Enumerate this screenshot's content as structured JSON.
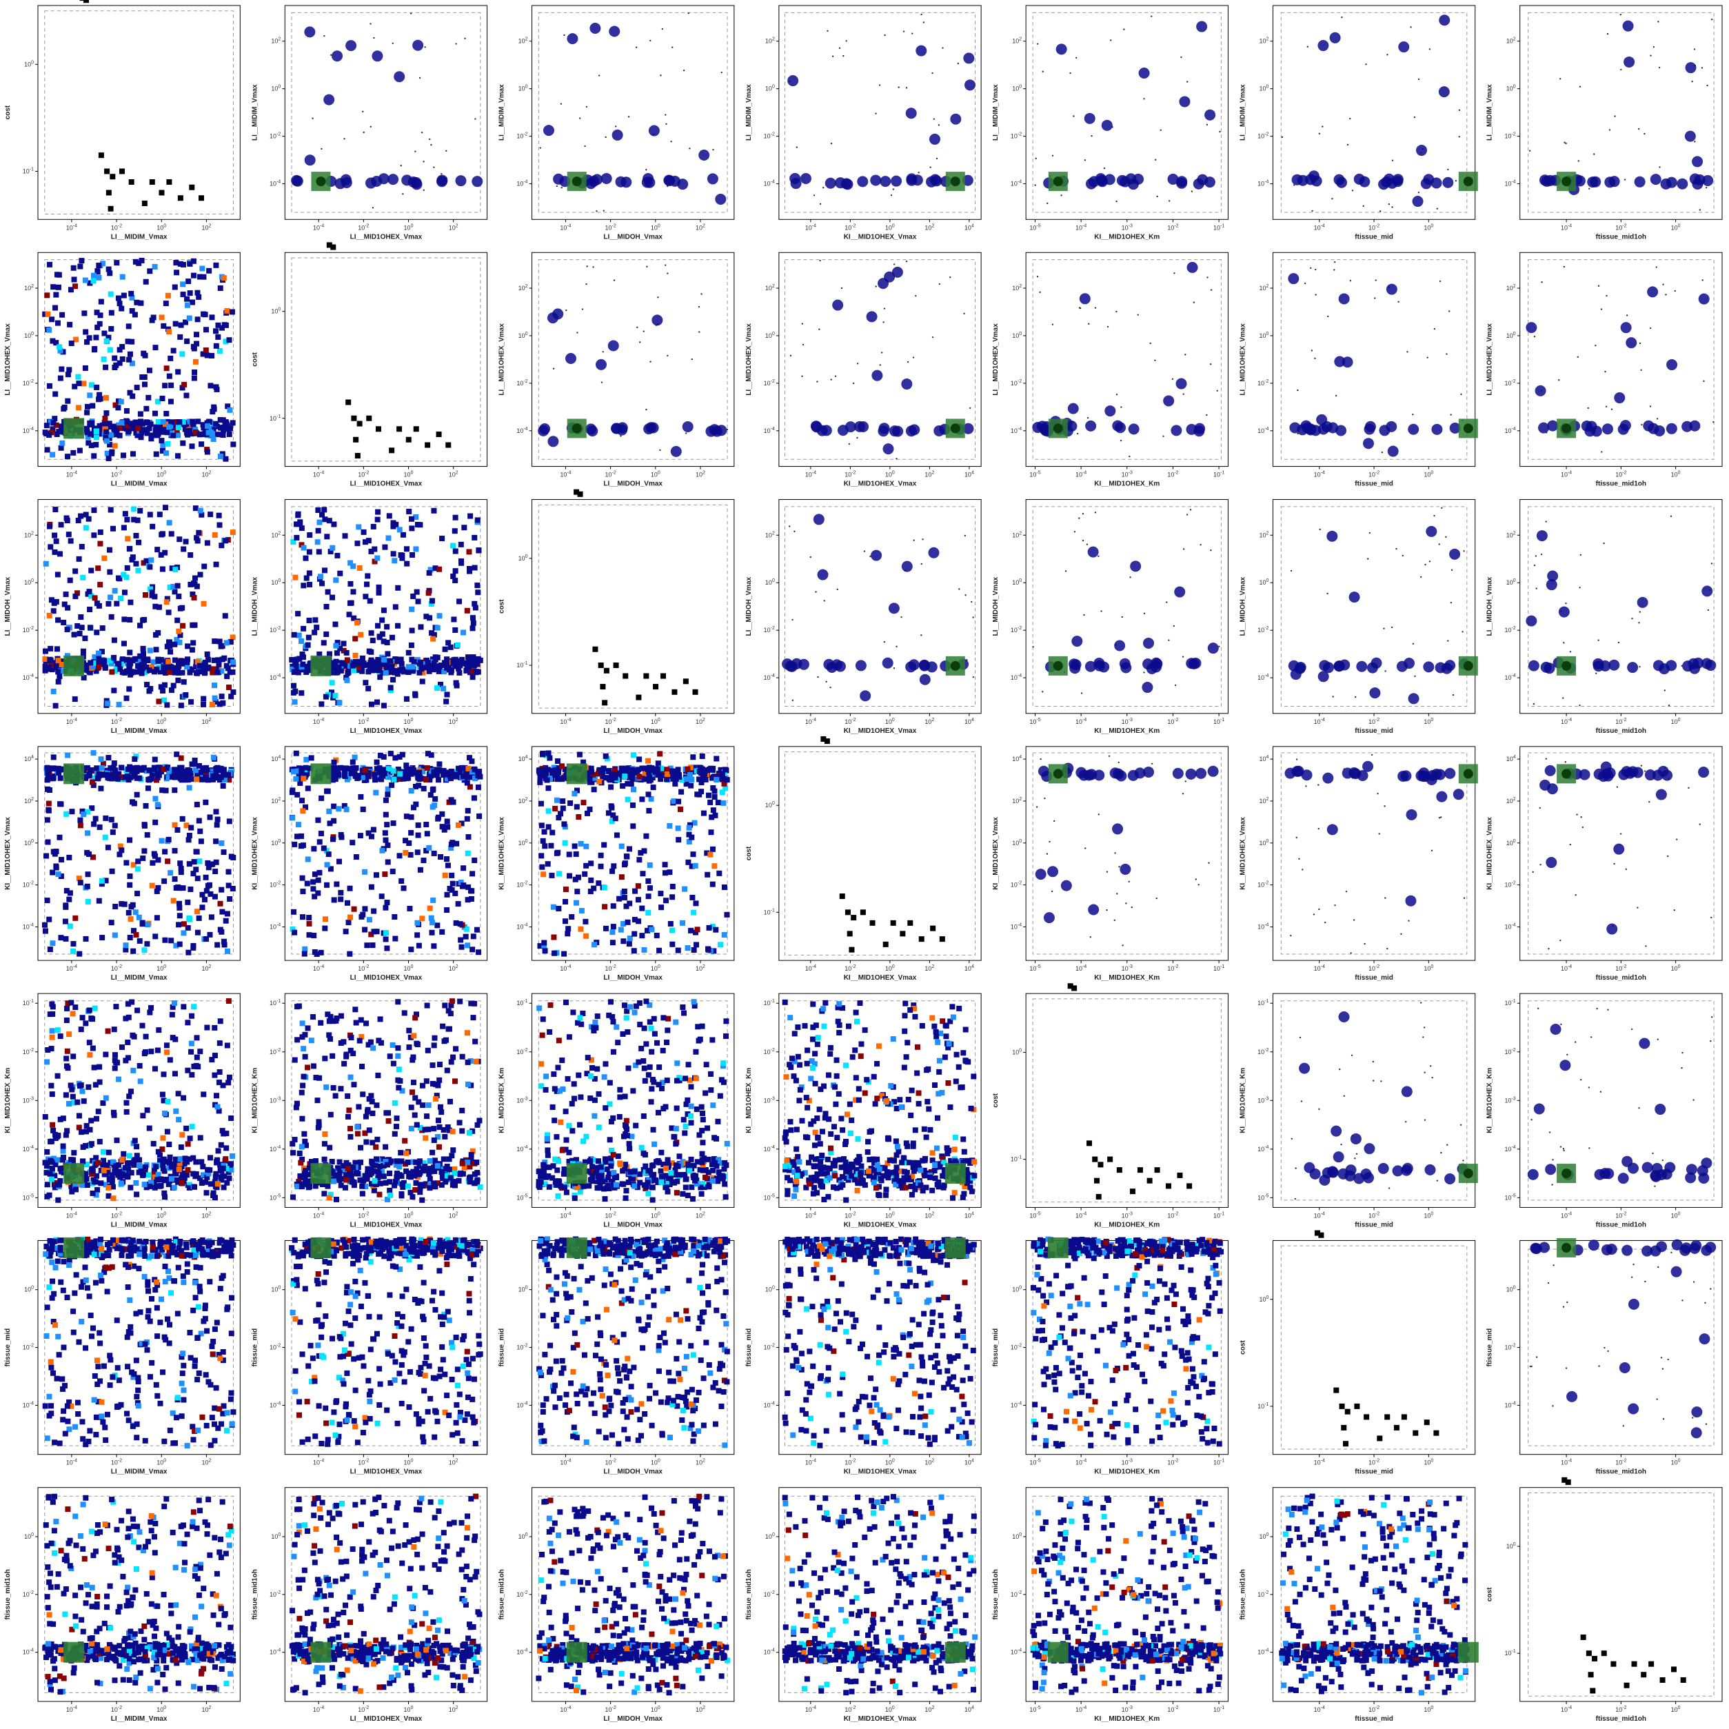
{
  "figure": {
    "type": "scatter-matrix",
    "variables": [
      "LI__MIDIM_Vmax",
      "LI__MID1OHEX_Vmax",
      "LI__MIDOH_Vmax",
      "KI__MID1OHEX_Vmax",
      "KI__MID1OHEX_Km",
      "ftissue_mid",
      "ftissue_mid1oh"
    ],
    "diagonal_ylabel": "cost",
    "colors": {
      "best_fit": "#2e7d32",
      "low_cost": "#0a0a8c",
      "mid_cost": "#1e90ff",
      "high_cost": "#8b0000",
      "frame": "#000000",
      "bounds": "#999999"
    },
    "legend": "none",
    "grid": false,
    "scale": "log-log"
  },
  "chart_data": {
    "type": "scatter",
    "title": "",
    "axes": {
      "LI__MIDIM_Vmax": {
        "xlabel": "LI__MIDIM_Vmax",
        "ticks": [
          "10^-4",
          "10^-2",
          "10^0",
          "10^2"
        ],
        "exp": [
          -4,
          -2,
          0,
          2
        ],
        "lim": [
          -5.5,
          3.5
        ],
        "bounds": [
          -5.2,
          3.2
        ]
      },
      "LI__MID1OHEX_Vmax": {
        "xlabel": "LI__MID1OHEX_Vmax",
        "ticks": [
          "10^-4",
          "10^-2",
          "10^0",
          "10^2"
        ],
        "exp": [
          -4,
          -2,
          0,
          2
        ],
        "lim": [
          -5.5,
          3.5
        ],
        "bounds": [
          -5.2,
          3.2
        ]
      },
      "LI__MIDOH_Vmax": {
        "xlabel": "LI__MIDOH_Vmax",
        "ticks": [
          "10^-4",
          "10^-2",
          "10^0",
          "10^2"
        ],
        "exp": [
          -4,
          -2,
          0,
          2
        ],
        "lim": [
          -5.5,
          3.5
        ],
        "bounds": [
          -5.2,
          3.2
        ]
      },
      "KI__MID1OHEX_Vmax": {
        "xlabel": "KI__MID1OHEX_Vmax",
        "ticks": [
          "10^-4",
          "10^-2",
          "10^0",
          "10^2",
          "10^4"
        ],
        "exp": [
          -4,
          -2,
          0,
          2,
          4
        ],
        "lim": [
          -5.6,
          4.6
        ],
        "bounds": [
          -5.3,
          4.3
        ]
      },
      "KI__MID1OHEX_Km": {
        "xlabel": "KI__MID1OHEX_Km",
        "ticks": [
          "10^-5",
          "10^-4",
          "10^-3",
          "10^-2",
          "10^-1"
        ],
        "exp": [
          -5,
          -4,
          -3,
          -2,
          -1
        ],
        "lim": [
          -5.2,
          -0.8
        ],
        "bounds": [
          -5.05,
          -0.95
        ]
      },
      "ftissue_mid": {
        "xlabel": "ftissue_mid",
        "ticks": [
          "10^-4",
          "10^-2",
          "10^0"
        ],
        "exp": [
          -4,
          -2,
          0
        ],
        "lim": [
          -5.7,
          1.7
        ],
        "bounds": [
          -5.4,
          1.4
        ]
      },
      "ftissue_mid1oh": {
        "xlabel": "ftissue_mid1oh",
        "ticks": [
          "10^-4",
          "10^-2",
          "10^0"
        ],
        "exp": [
          -4,
          -2,
          0
        ],
        "lim": [
          -5.7,
          1.7
        ],
        "bounds": [
          -5.4,
          1.4
        ]
      },
      "cost": {
        "ylabel": "cost",
        "ticks": [
          "10^-1",
          "10^0"
        ],
        "exp": [
          -1,
          0
        ],
        "lim": [
          -1.45,
          0.55
        ],
        "bounds": [
          -1.4,
          0.5
        ]
      }
    },
    "best_fit": {
      "LI__MIDIM_Vmax": -3.9,
      "LI__MID1OHEX_Vmax": -3.9,
      "LI__MIDOH_Vmax": -3.5,
      "KI__MID1OHEX_Vmax": 3.3,
      "KI__MID1OHEX_Km": -4.5,
      "ftissue_mid": 1.45,
      "ftissue_mid1oh": -4.0
    },
    "cost_points": [
      [
        -4.0,
        0.62
      ],
      [
        -3.8,
        0.6
      ],
      [
        -3.0,
        -0.85
      ],
      [
        -2.7,
        -1.0
      ],
      [
        -2.6,
        -1.2
      ],
      [
        -2.5,
        -1.35
      ],
      [
        -2.4,
        -1.05
      ],
      [
        -1.9,
        -1.0
      ],
      [
        -1.4,
        -1.1
      ],
      [
        -0.7,
        -1.3
      ],
      [
        -0.3,
        -1.1
      ],
      [
        0.2,
        -1.2
      ],
      [
        0.6,
        -1.1
      ],
      [
        1.2,
        -1.25
      ],
      [
        1.8,
        -1.15
      ],
      [
        2.3,
        -1.25
      ]
    ]
  }
}
